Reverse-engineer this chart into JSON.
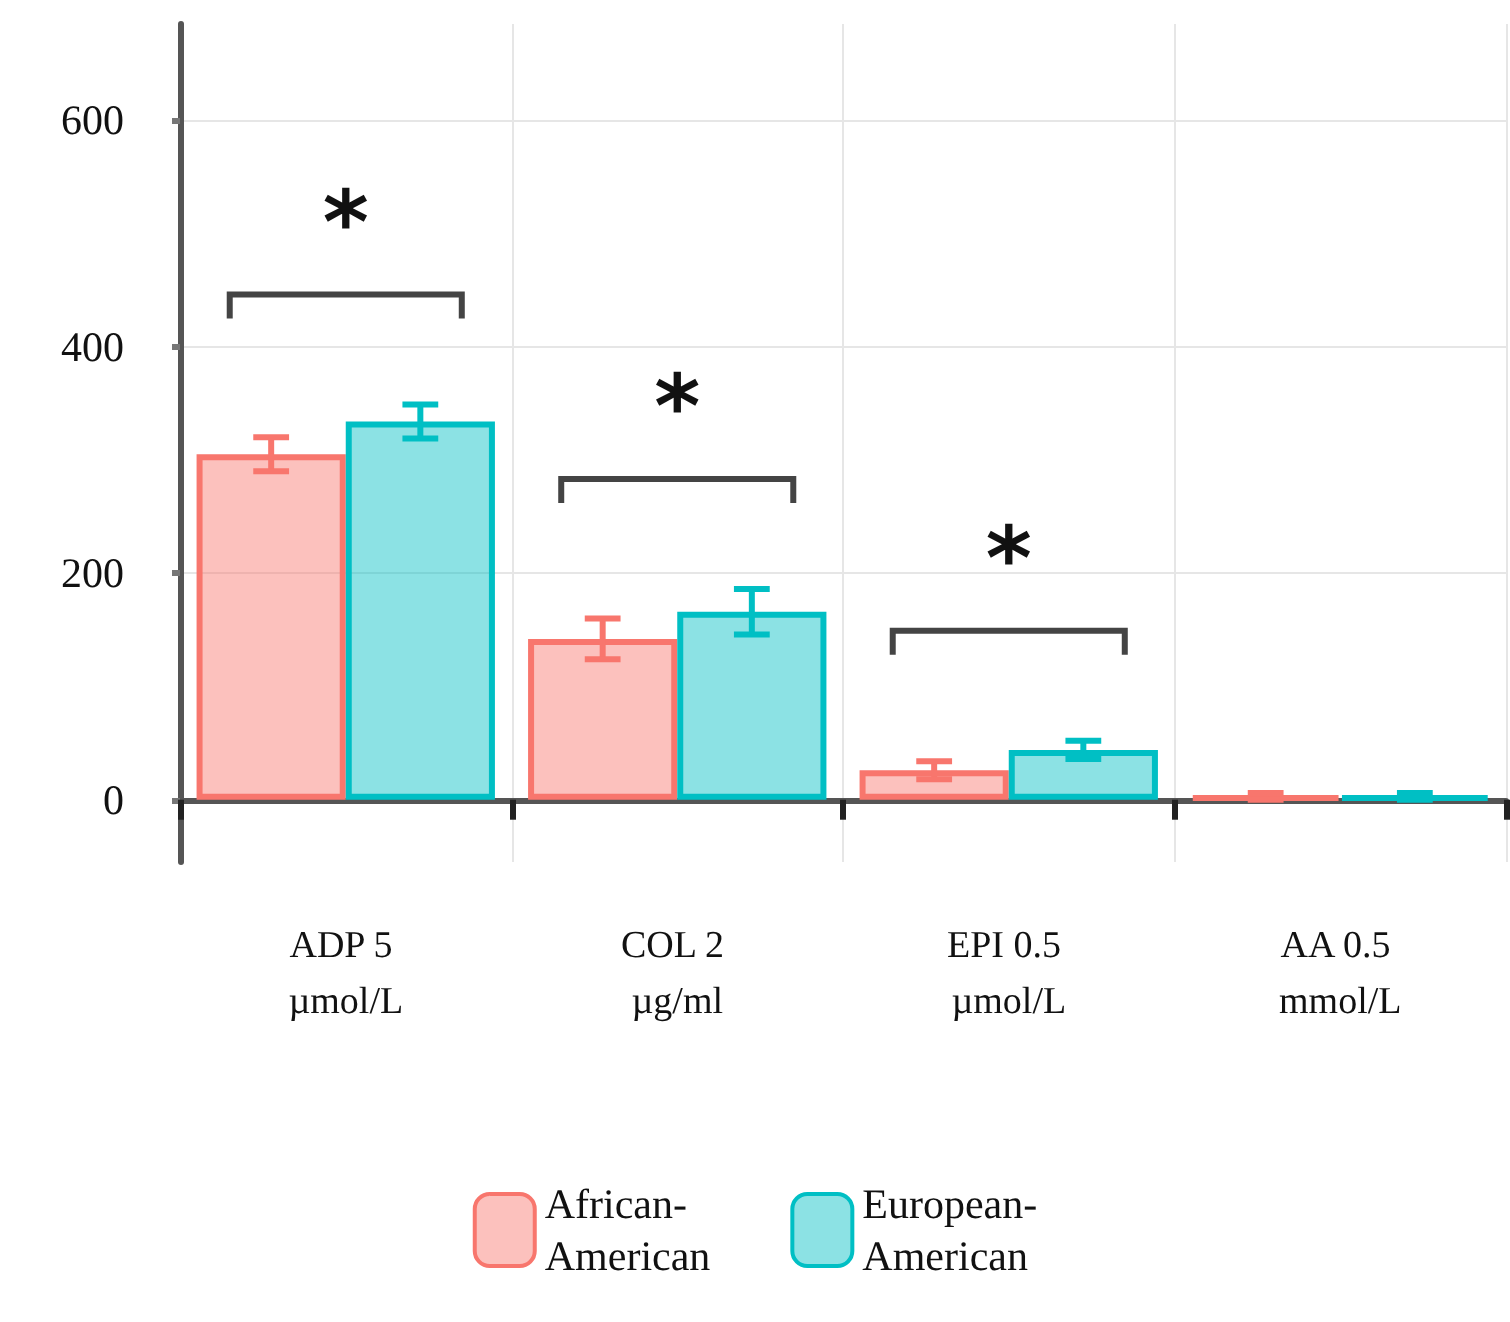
{
  "chart_data": {
    "type": "bar",
    "categories": [
      "ADP 5 µmol/L",
      "COL 2 µg/ml",
      "EPI 0.5 µmol/L",
      "AA 0.5 mmol/L"
    ],
    "series": [
      {
        "name": "African-American",
        "color": "#f8766d",
        "values": [
          305,
          142,
          26,
          3
        ],
        "errors": [
          15,
          18,
          8,
          3
        ]
      },
      {
        "name": "European-American",
        "color": "#00bfc4",
        "values": [
          334,
          166,
          44,
          3
        ],
        "errors": [
          15,
          20,
          8,
          3
        ]
      }
    ],
    "ylim": [
      -55,
      685
    ],
    "yticks": [
      0,
      200,
      400,
      600
    ],
    "grid": true,
    "legend": "bottom",
    "annotations": [
      "*",
      "*",
      "*"
    ]
  }
}
